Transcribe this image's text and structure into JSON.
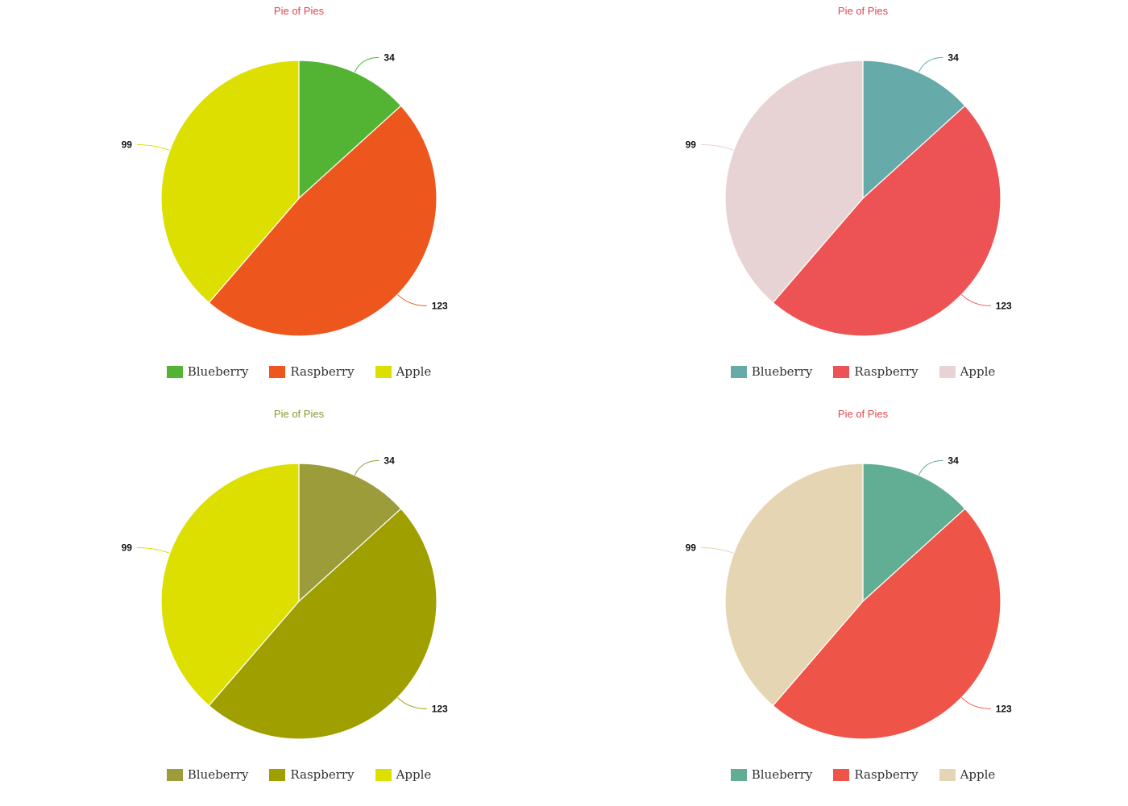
{
  "chart_data": [
    {
      "type": "pie",
      "title": "Pie of Pies",
      "title_color": "#e0454a",
      "categories": [
        "Blueberry",
        "Raspberry",
        "Apple"
      ],
      "values": [
        34,
        123,
        99
      ],
      "colors": [
        "#52b432",
        "#ed571d",
        "#dddf00"
      ],
      "legend_position": "bottom"
    },
    {
      "type": "pie",
      "title": "Pie of Pies",
      "title_color": "#e0454a",
      "categories": [
        "Blueberry",
        "Raspberry",
        "Apple"
      ],
      "values": [
        34,
        123,
        99
      ],
      "colors": [
        "#67aaaa",
        "#ed5355",
        "#e7d3d3"
      ],
      "legend_position": "bottom"
    },
    {
      "type": "pie",
      "title": "Pie of Pies",
      "title_color": "#8a9630",
      "categories": [
        "Blueberry",
        "Raspberry",
        "Apple"
      ],
      "values": [
        34,
        123,
        99
      ],
      "colors": [
        "#9c9c3b",
        "#9f9f00",
        "#dddf00"
      ],
      "legend_position": "bottom"
    },
    {
      "type": "pie",
      "title": "Pie of Pies",
      "title_color": "#e0454a",
      "categories": [
        "Blueberry",
        "Raspberry",
        "Apple"
      ],
      "values": [
        34,
        123,
        99
      ],
      "colors": [
        "#61ae94",
        "#ef5449",
        "#e5d5b3"
      ],
      "legend_position": "bottom"
    }
  ]
}
